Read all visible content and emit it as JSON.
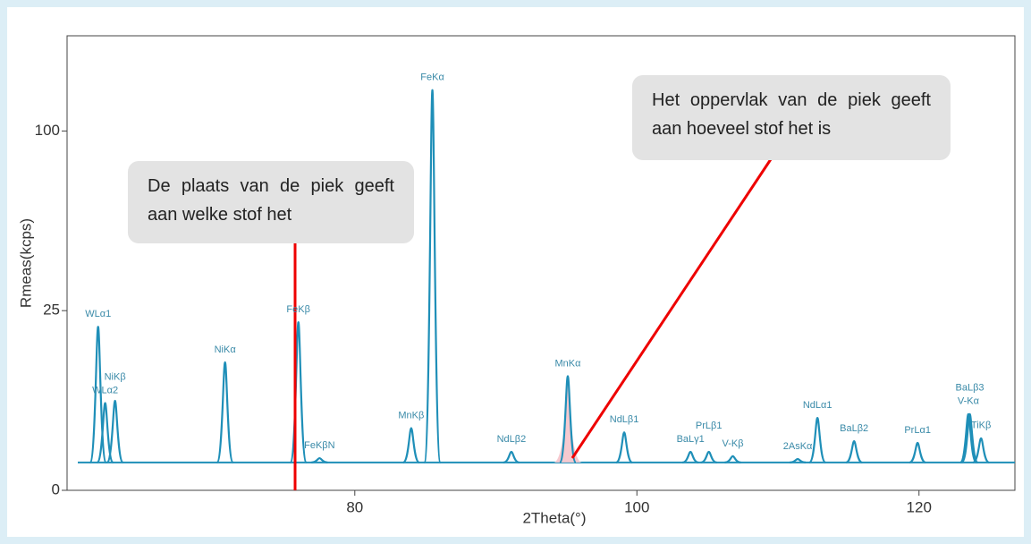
{
  "chart_data": {
    "type": "spectrum",
    "x_label": "2Theta(°)",
    "y_label": "Rmeas(kcps)",
    "xlim": [
      59.6,
      126.8
    ],
    "ylim": [
      0,
      160
    ],
    "yscale": "sqrt",
    "xticks": [
      80,
      100,
      120
    ],
    "yticks": [
      0,
      25,
      100
    ],
    "color": "#1f8fb8",
    "baseline": 0.6,
    "peaks": [
      {
        "label": "WLα1",
        "x": 61.8,
        "height": 20.7
      },
      {
        "label": "WLα2",
        "x": 62.3,
        "height": 5.9
      },
      {
        "label": "NiKβ",
        "x": 63.0,
        "height": 6.2
      },
      {
        "label": "NiKα",
        "x": 70.8,
        "height": 12.7
      },
      {
        "label": "FeKβ",
        "x": 76.0,
        "height": 21.9
      },
      {
        "label": "FeKβN",
        "x": 77.5,
        "height": 0.8
      },
      {
        "label": "MnKβ",
        "x": 84.0,
        "height": 3.0
      },
      {
        "label": "FeKα",
        "x": 85.5,
        "height": 124
      },
      {
        "label": "NdLβ2",
        "x": 91.1,
        "height": 1.15
      },
      {
        "label": "MnKα",
        "x": 95.1,
        "height": 10.1
      },
      {
        "label": "NdLβ1",
        "x": 99.1,
        "height": 2.6
      },
      {
        "label": "BaLγ1",
        "x": 103.8,
        "height": 1.15
      },
      {
        "label": "PrLβ1",
        "x": 105.1,
        "height": 1.15
      },
      {
        "label": "V-Kβ",
        "x": 106.8,
        "height": 0.9
      },
      {
        "label": "2AsKα",
        "x": 111.4,
        "height": 0.76
      },
      {
        "label": "NdLα1",
        "x": 112.8,
        "height": 4.06
      },
      {
        "label": "BaLβ2",
        "x": 115.4,
        "height": 1.87
      },
      {
        "label": "PrLα1",
        "x": 119.9,
        "height": 1.74
      },
      {
        "label": "V-Kα",
        "x": 123.5,
        "height": 4.5
      },
      {
        "label": "BaLβ3",
        "x": 123.6,
        "height": 4.5
      },
      {
        "label": "TiKβ",
        "x": 124.4,
        "height": 2.1
      }
    ]
  },
  "notes": [
    "De plaats van de piek geeft aan welke stof het",
    "Het oppervlak van de piek geeft aan hoeveel stof het is"
  ]
}
